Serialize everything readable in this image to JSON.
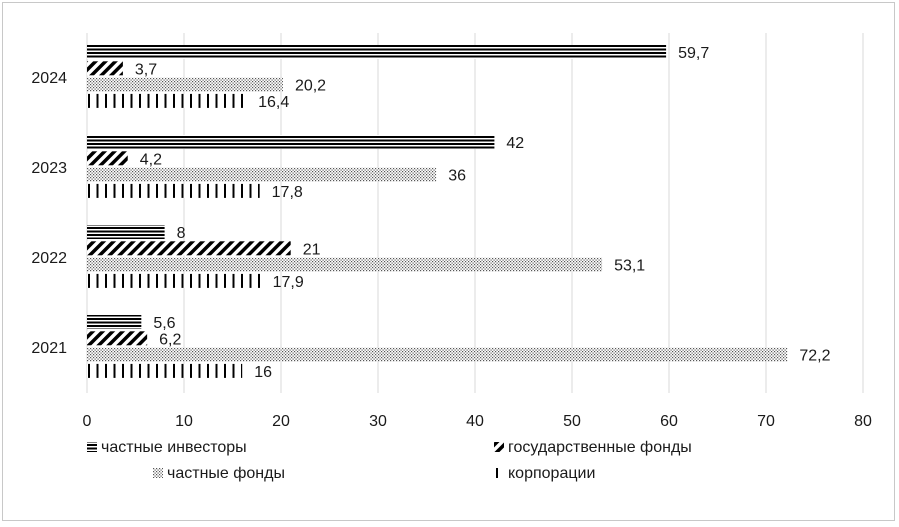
{
  "chart_data": {
    "type": "bar",
    "orientation": "horizontal",
    "categories": [
      "2024",
      "2023",
      "2022",
      "2021"
    ],
    "series": [
      {
        "name": "частные инвесторы",
        "pattern": "horizontal-lines",
        "values": [
          59.7,
          42,
          8,
          5.6
        ],
        "labels": [
          "59,7",
          "42",
          "8",
          "5,6"
        ]
      },
      {
        "name": "государственные фонды",
        "pattern": "diagonal-lines",
        "values": [
          3.7,
          4.2,
          21,
          6.2
        ],
        "labels": [
          "3,7",
          "4,2",
          "21",
          "6,2"
        ]
      },
      {
        "name": "частные фонды",
        "pattern": "dots",
        "values": [
          20.2,
          36,
          53.1,
          72.2
        ],
        "labels": [
          "20,2",
          "36",
          "53,1",
          "72,2"
        ]
      },
      {
        "name": "корпорации",
        "pattern": "vertical-lines",
        "values": [
          16.4,
          17.8,
          17.9,
          16
        ],
        "labels": [
          "16,4",
          "17,8",
          "17,9",
          "16"
        ]
      }
    ],
    "xlim": [
      0,
      80
    ],
    "xticks": [
      "0",
      "10",
      "20",
      "30",
      "40",
      "50",
      "60",
      "70",
      "80"
    ],
    "grid": "vertical",
    "legend_position": "bottom",
    "colors": {
      "bar": "#000000",
      "grid": "#d9d9d9",
      "text": "#1a1a1a"
    }
  }
}
